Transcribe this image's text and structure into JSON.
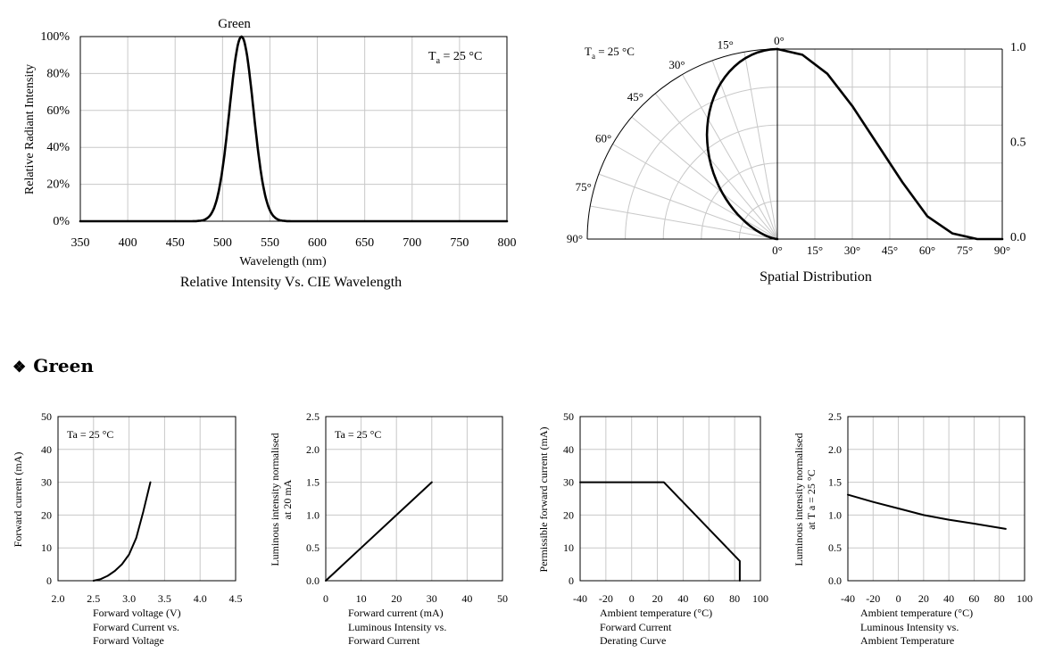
{
  "section": {
    "bullet": "❖",
    "title": "Green"
  },
  "chart_data": [
    {
      "id": "spectrum",
      "type": "line",
      "series": [
        {
          "name": "Green",
          "x": [
            350,
            480,
            490,
            495,
            500,
            505,
            510,
            515,
            520,
            525,
            530,
            535,
            540,
            545,
            550,
            560,
            570,
            580,
            800
          ],
          "y": [
            0,
            0,
            0.3,
            1.5,
            5,
            17,
            40,
            72,
            100,
            95,
            75,
            45,
            18,
            6,
            2,
            0.3,
            0,
            0,
            0
          ]
        }
      ],
      "annotation": "Green",
      "condition_main": "T",
      "condition_sub": "a",
      "condition_rest": " = 25 °C",
      "xlabel": "Wavelength (nm)",
      "ylabel": "Relative Radiant Intensity",
      "caption": "Relative Intensity Vs. CIE Wavelength",
      "xlim": [
        350,
        800
      ],
      "ylim": [
        0,
        100
      ],
      "xticks": [
        "350",
        "400",
        "450",
        "500",
        "550",
        "600",
        "650",
        "700",
        "750",
        "800"
      ],
      "yticks": [
        "0%",
        "20%",
        "40%",
        "60%",
        "80%",
        "100%"
      ]
    },
    {
      "id": "spatial",
      "type": "line",
      "series": [
        {
          "name": "",
          "x": [
            0,
            10,
            20,
            30,
            40,
            50,
            60,
            70,
            80,
            90
          ],
          "y": [
            1.0,
            0.97,
            0.87,
            0.7,
            0.5,
            0.3,
            0.12,
            0.03,
            0.0,
            0.0
          ]
        }
      ],
      "condition_main": "T",
      "condition_sub": "a",
      "condition_rest": " = 25 °C",
      "caption": "Spatial Distribution",
      "polar_labels": [
        "0°",
        "15°",
        "30°",
        "45°",
        "60°",
        "75°",
        "90°"
      ],
      "xticks": [
        "0°",
        "15°",
        "30°",
        "45°",
        "60°",
        "75°",
        "90°"
      ],
      "yticks": [
        "0.0",
        "0.5",
        "1.0"
      ],
      "xlim": [
        0,
        90
      ],
      "ylim": [
        0,
        1.0
      ]
    },
    {
      "id": "iv",
      "type": "line",
      "series": [
        {
          "name": "",
          "x": [
            2.5,
            2.6,
            2.7,
            2.8,
            2.9,
            3.0,
            3.1,
            3.2,
            3.3
          ],
          "y": [
            0,
            0.5,
            1.5,
            3,
            5,
            8,
            13,
            21,
            30
          ]
        }
      ],
      "condition": "Ta = 25 °C",
      "xlabel": "Forward voltage (V)",
      "ylabel": "Forward current (mA)",
      "caption": [
        "Forward Current vs.",
        "Forward Voltage"
      ],
      "xlim": [
        2.0,
        4.5
      ],
      "ylim": [
        0,
        50
      ],
      "xticks": [
        "2.0",
        "2.5",
        "3.0",
        "3.5",
        "4.0",
        "4.5"
      ],
      "yticks": [
        "0",
        "10",
        "20",
        "30",
        "40",
        "50"
      ]
    },
    {
      "id": "li",
      "type": "line",
      "series": [
        {
          "name": "",
          "x": [
            0,
            10,
            20,
            30
          ],
          "y": [
            0,
            0.5,
            1.0,
            1.5
          ]
        }
      ],
      "condition": "Ta = 25 °C",
      "xlabel": "Forward current (mA)",
      "ylabel": [
        "Luminous intensity normalised",
        "at 20 mA"
      ],
      "caption": [
        "Luminous Intensity vs.",
        "Forward Current"
      ],
      "xlim": [
        0,
        50
      ],
      "ylim": [
        0,
        2.5
      ],
      "xticks": [
        "0",
        "10",
        "20",
        "30",
        "40",
        "50"
      ],
      "yticks": [
        "0.0",
        "0.5",
        "1.0",
        "1.5",
        "2.0",
        "2.5"
      ]
    },
    {
      "id": "derating",
      "type": "line",
      "series": [
        {
          "name": "",
          "x": [
            -40,
            25,
            84,
            84
          ],
          "y": [
            30,
            30,
            6,
            0
          ]
        }
      ],
      "xlabel": "Ambient temperature (°C)",
      "ylabel": "Permissible forward current (mA)",
      "caption": [
        "Forward Current",
        "Derating  Curve"
      ],
      "xlim": [
        -40,
        100
      ],
      "ylim": [
        0,
        50
      ],
      "xticks": [
        "-40",
        "-20",
        "0",
        "20",
        "40",
        "60",
        "80",
        "100"
      ],
      "yticks": [
        "0",
        "10",
        "20",
        "30",
        "40",
        "50"
      ]
    },
    {
      "id": "temp",
      "type": "line",
      "series": [
        {
          "name": "",
          "x": [
            -40,
            -20,
            0,
            20,
            40,
            60,
            85
          ],
          "y": [
            1.31,
            1.2,
            1.1,
            1.0,
            0.93,
            0.87,
            0.79
          ]
        }
      ],
      "xlabel": "Ambient temperature (°C)",
      "ylabel": [
        "Luminous intensity normalised",
        "at T a = 25 °C"
      ],
      "caption": [
        "Luminous Intensity vs.",
        "Ambient Temperature"
      ],
      "xlim": [
        -40,
        100
      ],
      "ylim": [
        0,
        2.5
      ],
      "xticks": [
        "-40",
        "-20",
        "0",
        "20",
        "40",
        "60",
        "80",
        "100"
      ],
      "yticks": [
        "0.0",
        "0.5",
        "1.0",
        "1.5",
        "2.0",
        "2.5"
      ]
    }
  ]
}
